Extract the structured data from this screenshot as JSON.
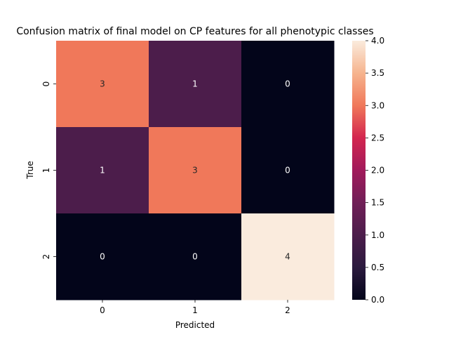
{
  "chart_data": {
    "type": "heatmap",
    "title": "Confusion matrix of final model on CP features for all phenotypic classes",
    "xlabel": "Predicted",
    "ylabel": "True",
    "x_categories": [
      "0",
      "1",
      "2"
    ],
    "y_categories": [
      "0",
      "1",
      "2"
    ],
    "values": [
      [
        3,
        1,
        0
      ],
      [
        1,
        3,
        0
      ],
      [
        0,
        0,
        4
      ]
    ],
    "colorbar": {
      "min": 0.0,
      "max": 4.0,
      "ticks": [
        "0.0",
        "0.5",
        "1.0",
        "1.5",
        "2.0",
        "2.5",
        "3.0",
        "3.5",
        "4.0"
      ],
      "colormap": "rocket"
    },
    "grid": false,
    "legend": "colorbar-right"
  }
}
